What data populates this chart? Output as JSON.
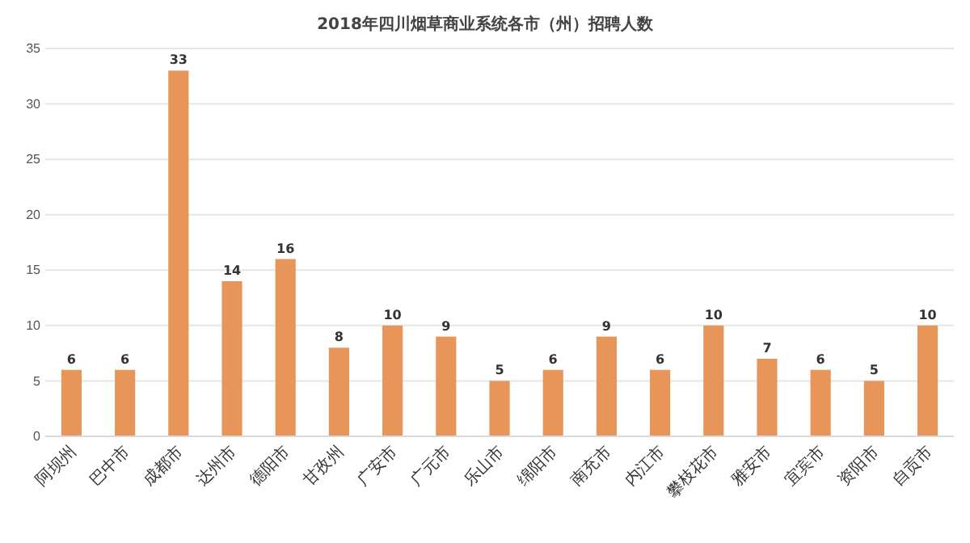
{
  "chart_data": {
    "type": "bar",
    "title": "2018年四川烟草商业系统各市（州）招聘人数",
    "categories": [
      "阿坝州",
      "巴中市",
      "成都市",
      "达州市",
      "德阳市",
      "甘孜州",
      "广安市",
      "广元市",
      "乐山市",
      "绵阳市",
      "南充市",
      "内江市",
      "攀枝花市",
      "雅安市",
      "宜宾市",
      "资阳市",
      "自贡市"
    ],
    "values": [
      6,
      6,
      33,
      14,
      16,
      8,
      10,
      9,
      5,
      6,
      9,
      6,
      10,
      7,
      6,
      5,
      10
    ],
    "color": "#e8955a",
    "ylim": [
      0,
      35
    ],
    "yticks": [
      0,
      5,
      10,
      15,
      20,
      25,
      30,
      35
    ],
    "grid": "y",
    "data_labels": true
  }
}
